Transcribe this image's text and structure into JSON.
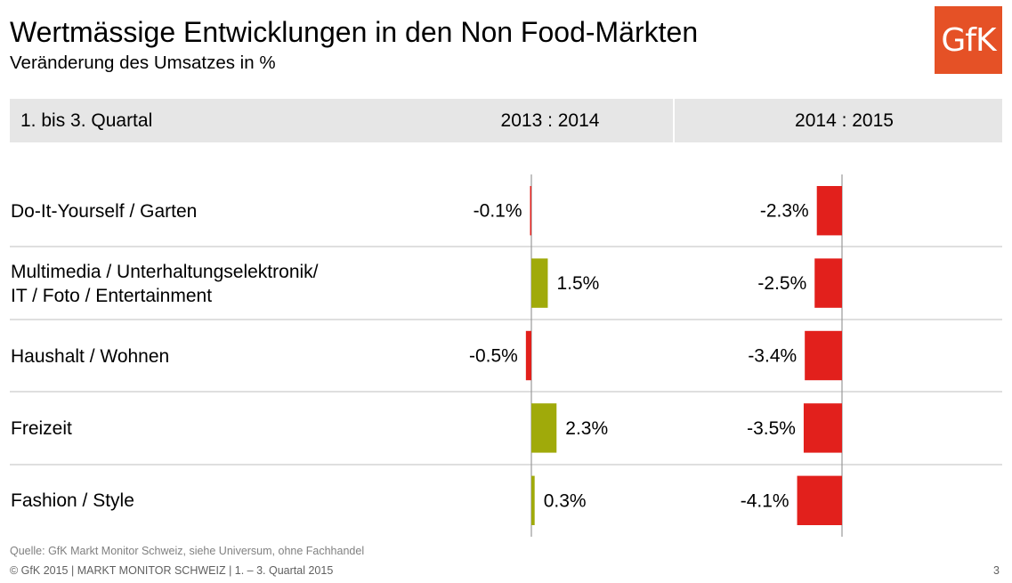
{
  "header": {
    "title": "Wertmässige Entwicklungen in den Non Food-Märkten",
    "subtitle": "Veränderung des Umsatzes in %",
    "logo_text": "GfK"
  },
  "table_header": {
    "period_label": "1. bis 3. Quartal",
    "col1": "2013 : 2014",
    "col2": "2014 : 2015"
  },
  "rows": [
    {
      "line1": "Do-It-Yourself / Garten",
      "line2": ""
    },
    {
      "line1": "Multimedia / Unterhaltungselektronik/",
      "line2": "IT / Foto / Entertainment"
    },
    {
      "line1": "Haushalt / Wohnen",
      "line2": ""
    },
    {
      "line1": "Freizeit",
      "line2": ""
    },
    {
      "line1": "Fashion / Style",
      "line2": ""
    }
  ],
  "chart_data": {
    "type": "bar",
    "orientation": "horizontal",
    "title": "Wertmässige Entwicklungen in den Non Food-Märkten",
    "subtitle": "Veränderung des Umsatzes in %",
    "categories": [
      "Do-It-Yourself / Garten",
      "Multimedia / Unterhaltungselektronik/ IT / Foto / Entertainment",
      "Haushalt / Wohnen",
      "Freizeit",
      "Fashion / Style"
    ],
    "series": [
      {
        "name": "2013 : 2014",
        "values": [
          -0.1,
          1.5,
          -0.5,
          2.3,
          0.3
        ],
        "labels": [
          "-0.1%",
          "1.5%",
          "-0.5%",
          "2.3%",
          "0.3%"
        ]
      },
      {
        "name": "2014 : 2015",
        "values": [
          -2.3,
          -2.5,
          -3.4,
          -3.5,
          -4.1
        ],
        "labels": [
          "-2.3%",
          "-2.5%",
          "-3.4%",
          "-3.5%",
          "-4.1%"
        ]
      }
    ],
    "colors": {
      "positive": "#a0aa0a",
      "negative": "#e2201c",
      "axis": "#999999",
      "divider": "#bfbfbf"
    }
  },
  "footer": {
    "source": "Quelle: GfK Markt Monitor Schweiz, siehe Universum, ohne Fachhandel",
    "copyright": "© GfK 2015 | MARKT MONITOR SCHWEIZ | 1. – 3. Quartal 2015",
    "page": "3"
  }
}
